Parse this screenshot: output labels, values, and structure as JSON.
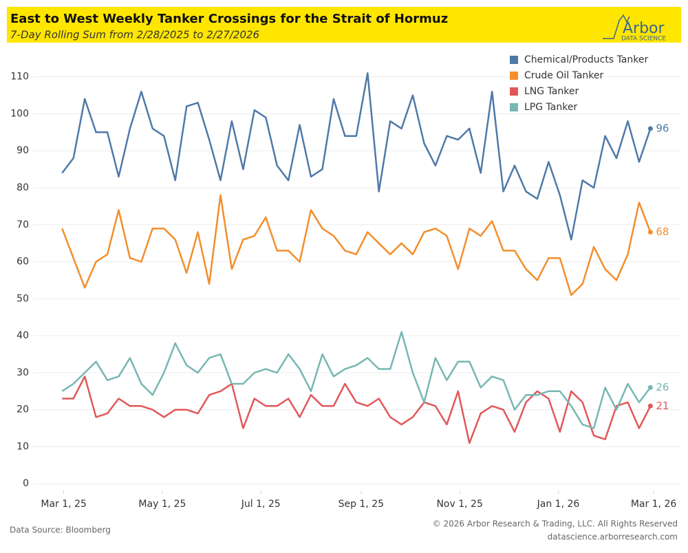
{
  "chart_data": {
    "type": "line",
    "title": "East to West Weekly Tanker Crossings for the Strait of Hormuz",
    "subtitle": "7-Day Rolling Sum from 2/28/2025 to 2/27/2026",
    "logo": {
      "name": "Arbor",
      "tagline": "DATA SCIENCE"
    },
    "source": "Data Source: Bloomberg",
    "copyright": "© 2026 Arbor Research & Trading, LLC. All Rights Reserved",
    "url": "datascience.arborresearch.com",
    "x": [
      "2025-02-28",
      "2025-03-07",
      "2025-03-14",
      "2025-03-21",
      "2025-03-28",
      "2025-04-04",
      "2025-04-11",
      "2025-04-18",
      "2025-04-25",
      "2025-05-02",
      "2025-05-09",
      "2025-05-16",
      "2025-05-23",
      "2025-05-30",
      "2025-06-06",
      "2025-06-13",
      "2025-06-20",
      "2025-06-27",
      "2025-07-04",
      "2025-07-11",
      "2025-07-18",
      "2025-07-25",
      "2025-08-01",
      "2025-08-08",
      "2025-08-15",
      "2025-08-22",
      "2025-08-29",
      "2025-09-05",
      "2025-09-12",
      "2025-09-19",
      "2025-09-26",
      "2025-10-03",
      "2025-10-10",
      "2025-10-17",
      "2025-10-24",
      "2025-10-31",
      "2025-11-07",
      "2025-11-14",
      "2025-11-21",
      "2025-11-28",
      "2025-12-05",
      "2025-12-12",
      "2025-12-19",
      "2025-12-26",
      "2026-01-02",
      "2026-01-09",
      "2026-01-16",
      "2026-01-23",
      "2026-01-30",
      "2026-02-06",
      "2026-02-13",
      "2026-02-20",
      "2026-02-27"
    ],
    "series": [
      {
        "name": "Chemical/Products Tanker",
        "color": "#4e79a7",
        "values": [
          84,
          88,
          104,
          95,
          95,
          83,
          96,
          106,
          96,
          94,
          82,
          102,
          103,
          93,
          82,
          98,
          85,
          101,
          99,
          86,
          82,
          97,
          83,
          85,
          104,
          94,
          94,
          111,
          79,
          98,
          96,
          105,
          92,
          86,
          94,
          93,
          96,
          84,
          106,
          79,
          86,
          79,
          77,
          87,
          78,
          66,
          82,
          80,
          94,
          88,
          98,
          87,
          96
        ]
      },
      {
        "name": "Crude Oil Tanker",
        "color": "#f28e2b",
        "values": [
          69,
          61,
          53,
          60,
          62,
          74,
          61,
          60,
          69,
          69,
          66,
          57,
          68,
          54,
          78,
          58,
          66,
          67,
          72,
          63,
          63,
          60,
          74,
          69,
          67,
          63,
          62,
          68,
          65,
          62,
          65,
          62,
          68,
          69,
          67,
          58,
          69,
          67,
          71,
          63,
          63,
          58,
          55,
          61,
          61,
          51,
          54,
          64,
          58,
          55,
          62,
          76,
          68
        ]
      },
      {
        "name": "LNG Tanker",
        "color": "#e15759",
        "values": [
          23,
          23,
          29,
          18,
          19,
          23,
          21,
          21,
          20,
          18,
          20,
          20,
          19,
          24,
          25,
          27,
          15,
          23,
          21,
          21,
          23,
          18,
          24,
          21,
          21,
          27,
          22,
          21,
          23,
          18,
          16,
          18,
          22,
          21,
          16,
          25,
          11,
          19,
          21,
          20,
          14,
          22,
          25,
          23,
          14,
          25,
          22,
          13,
          12,
          21,
          22,
          15,
          21
        ]
      },
      {
        "name": "LPG Tanker",
        "color": "#76b7b2",
        "values": [
          25,
          27,
          30,
          33,
          28,
          29,
          34,
          27,
          24,
          30,
          38,
          32,
          30,
          34,
          35,
          27,
          27,
          30,
          31,
          30,
          35,
          31,
          25,
          35,
          29,
          31,
          32,
          34,
          31,
          31,
          41,
          30,
          22,
          34,
          28,
          33,
          33,
          26,
          29,
          28,
          20,
          24,
          24,
          25,
          25,
          21,
          16,
          15,
          26,
          20,
          27,
          22,
          26
        ]
      }
    ],
    "xlim": [
      "2025-02-10",
      "2026-03-18"
    ],
    "xticks": [
      {
        "value": "2025-03-01",
        "label": "Mar 1, 25"
      },
      {
        "value": "2025-05-01",
        "label": "May 1, 25"
      },
      {
        "value": "2025-07-01",
        "label": "Jul 1, 25"
      },
      {
        "value": "2025-09-01",
        "label": "Sep 1, 25"
      },
      {
        "value": "2025-11-01",
        "label": "Nov 1, 25"
      },
      {
        "value": "2026-01-01",
        "label": "Jan 1, 26"
      },
      {
        "value": "2026-03-01",
        "label": "Mar 1, 26"
      }
    ],
    "ylim": [
      -2,
      117
    ],
    "yticks": [
      0,
      10,
      20,
      30,
      40,
      50,
      60,
      70,
      80,
      90,
      100,
      110
    ],
    "grid": true,
    "legend": "top-right"
  }
}
